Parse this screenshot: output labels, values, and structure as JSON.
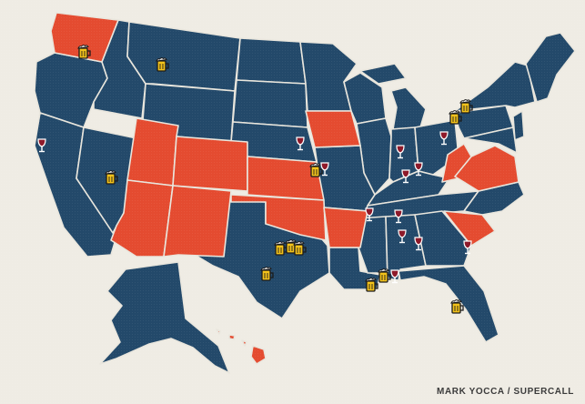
{
  "credit": "MARK YOCCA / SUPERCALL",
  "colors": {
    "background": "#efece4",
    "state_blue": "#23496a",
    "state_red": "#e44b30",
    "border": "#e9e6dd",
    "beer_fill": "#f2c21b",
    "wine_fill": "#8e1a2a"
  },
  "legend_groups": {
    "highlighted_states": [
      "Washington",
      "Utah",
      "Colorado",
      "Arizona",
      "New Mexico",
      "Kansas",
      "Oklahoma",
      "Arkansas",
      "Iowa",
      "West Virginia",
      "Virginia",
      "South Carolina",
      "Hawaii"
    ],
    "other_states": "all remaining states"
  },
  "markers": [
    {
      "type": "beer",
      "label": "beer-icon"
    },
    {
      "type": "wine",
      "label": "wine-glass-icon"
    }
  ]
}
